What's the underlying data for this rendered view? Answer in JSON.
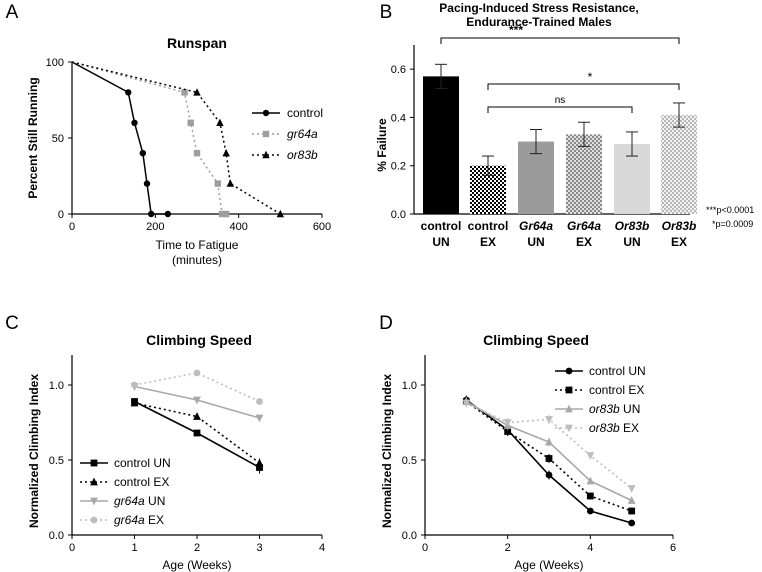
{
  "chart_data": [
    {
      "panel": "A",
      "type": "line",
      "title": "Runspan",
      "xlabel": "Time to Fatigue",
      "xlabel2": "(minutes)",
      "ylabel": "Percent Still Running",
      "xlim": [
        0,
        600
      ],
      "ylim": [
        0,
        100
      ],
      "xticks": [
        "0",
        "200",
        "400",
        "600"
      ],
      "yticks": [
        "0",
        "50",
        "100"
      ],
      "legend_position": "right",
      "series": [
        {
          "name": "control",
          "color": "#000000",
          "marker": "circle",
          "dash": "solid",
          "x": [
            0,
            135,
            150,
            170,
            180,
            190,
            230
          ],
          "y": [
            100,
            80,
            60,
            40,
            20,
            0,
            0
          ]
        },
        {
          "name": "gr64a",
          "color": "#9e9e9e",
          "marker": "square",
          "dash": "dotted",
          "x": [
            0,
            270,
            285,
            300,
            350,
            360,
            370
          ],
          "y": [
            100,
            80,
            60,
            40,
            20,
            0,
            0
          ]
        },
        {
          "name": "or83b",
          "color": "#000000",
          "marker": "triangle",
          "dash": "dotted",
          "x": [
            0,
            300,
            355,
            370,
            380,
            500
          ],
          "y": [
            100,
            80,
            60,
            40,
            20,
            0
          ]
        }
      ]
    },
    {
      "panel": "B",
      "type": "bar",
      "title": "Pacing-Induced Stress Resistance,",
      "title2": "Endurance-Trained Males",
      "ylabel": "% Failure",
      "ylim": [
        0,
        0.7
      ],
      "yticks": [
        "0.0",
        "0.2",
        "0.4",
        "0.6"
      ],
      "categories": [
        {
          "top": "control",
          "bottom": "UN",
          "italic": false
        },
        {
          "top": "control",
          "bottom": "EX",
          "italic": false
        },
        {
          "top": "Gr64a",
          "bottom": "UN",
          "italic": true
        },
        {
          "top": "Gr64a",
          "bottom": "EX",
          "italic": true
        },
        {
          "top": "Or83b",
          "bottom": "UN",
          "italic": true
        },
        {
          "top": "Or83b",
          "bottom": "EX",
          "italic": true
        }
      ],
      "values": [
        0.57,
        0.2,
        0.3,
        0.33,
        0.29,
        0.41
      ],
      "errors": [
        0.05,
        0.04,
        0.05,
        0.05,
        0.05,
        0.05
      ],
      "fills": [
        "solid-black",
        "checker-black",
        "solid-gray",
        "checker-gray",
        "solid-lightgray",
        "checker-lightgray"
      ],
      "brackets": [
        {
          "label": "***",
          "from": 0,
          "to": 5
        },
        {
          "label": "*",
          "from": 1,
          "to": 5
        },
        {
          "label": "ns",
          "from": 1,
          "to": 4
        }
      ],
      "footnotes": [
        "***p<0.0001",
        "*p=0.0009"
      ]
    },
    {
      "panel": "C",
      "type": "line",
      "title": "Climbing Speed",
      "xlabel": "Age (Weeks)",
      "ylabel": "Normalized Climbing Index",
      "xlim": [
        0,
        4
      ],
      "ylim": [
        0,
        1.2
      ],
      "xticks": [
        "0",
        "1",
        "2",
        "3",
        "4"
      ],
      "yticks": [
        "0.0",
        "0.5",
        "1.0"
      ],
      "legend_position": "bottom-left",
      "series": [
        {
          "name": "control UN",
          "italic_part": "",
          "rest": "control UN",
          "color": "#000000",
          "marker": "square",
          "dash": "solid",
          "x": [
            1,
            2,
            3
          ],
          "y": [
            0.89,
            0.68,
            0.45
          ],
          "err": [
            0.02,
            0.02,
            0.04
          ]
        },
        {
          "name": "control EX",
          "italic_part": "",
          "rest": "control EX",
          "color": "#000000",
          "marker": "triangle",
          "dash": "dotted",
          "x": [
            1,
            2,
            3
          ],
          "y": [
            0.88,
            0.79,
            0.48
          ],
          "err": [
            0.02,
            0.02,
            0.03
          ]
        },
        {
          "name": "gr64a UN",
          "italic_part": "gr64a",
          "rest": " UN",
          "color": "#a8a8a8",
          "marker": "triangle-down",
          "dash": "solid",
          "x": [
            1,
            2,
            3
          ],
          "y": [
            0.99,
            0.9,
            0.78
          ],
          "err": [
            0.01,
            0.01,
            0.02
          ]
        },
        {
          "name": "gr64a EX",
          "italic_part": "gr64a",
          "rest": " EX",
          "color": "#bdbdbd",
          "marker": "circle",
          "dash": "dotted",
          "x": [
            1,
            2,
            3
          ],
          "y": [
            1.0,
            1.08,
            0.89
          ],
          "err": [
            0.01,
            0.01,
            0.02
          ]
        }
      ]
    },
    {
      "panel": "D",
      "type": "line",
      "title": "Climbing Speed",
      "xlabel": "Age (Weeks)",
      "ylabel": "Normalized Climbing Index",
      "xlim": [
        0,
        6
      ],
      "ylim": [
        0,
        1.2
      ],
      "xticks": [
        "0",
        "2",
        "4",
        "6"
      ],
      "yticks": [
        "0.0",
        "0.5",
        "1.0"
      ],
      "legend_position": "top-right",
      "series": [
        {
          "name": "control UN",
          "italic_part": "",
          "rest": "control UN",
          "color": "#000000",
          "marker": "circle",
          "dash": "solid",
          "x": [
            1,
            2,
            3,
            4,
            5
          ],
          "y": [
            0.9,
            0.7,
            0.4,
            0.16,
            0.08
          ],
          "err": [
            0.03,
            0.03,
            0.03,
            0.01,
            0.01
          ]
        },
        {
          "name": "control EX",
          "italic_part": "",
          "rest": "control EX",
          "color": "#000000",
          "marker": "square",
          "dash": "dotted",
          "x": [
            1,
            2,
            3,
            4,
            5
          ],
          "y": [
            0.89,
            0.69,
            0.51,
            0.26,
            0.16
          ],
          "err": [
            0.03,
            0.03,
            0.03,
            0.01,
            0.01
          ]
        },
        {
          "name": "or83b UN",
          "italic_part": "or83b",
          "rest": " UN",
          "color": "#a8a8a8",
          "marker": "triangle",
          "dash": "solid",
          "x": [
            1,
            2,
            3,
            4,
            5
          ],
          "y": [
            0.89,
            0.73,
            0.62,
            0.36,
            0.23
          ],
          "err": [
            0.03,
            0.03,
            0.03,
            0.01,
            0.01
          ]
        },
        {
          "name": "or83b EX",
          "italic_part": "or83b",
          "rest": " EX",
          "color": "#bdbdbd",
          "marker": "triangle-down",
          "dash": "dotted",
          "x": [
            1,
            2,
            3,
            4,
            5
          ],
          "y": [
            0.88,
            0.75,
            0.77,
            0.53,
            0.31
          ],
          "err": [
            0.03,
            0.03,
            0.03,
            0.02,
            0.01
          ]
        }
      ]
    }
  ]
}
